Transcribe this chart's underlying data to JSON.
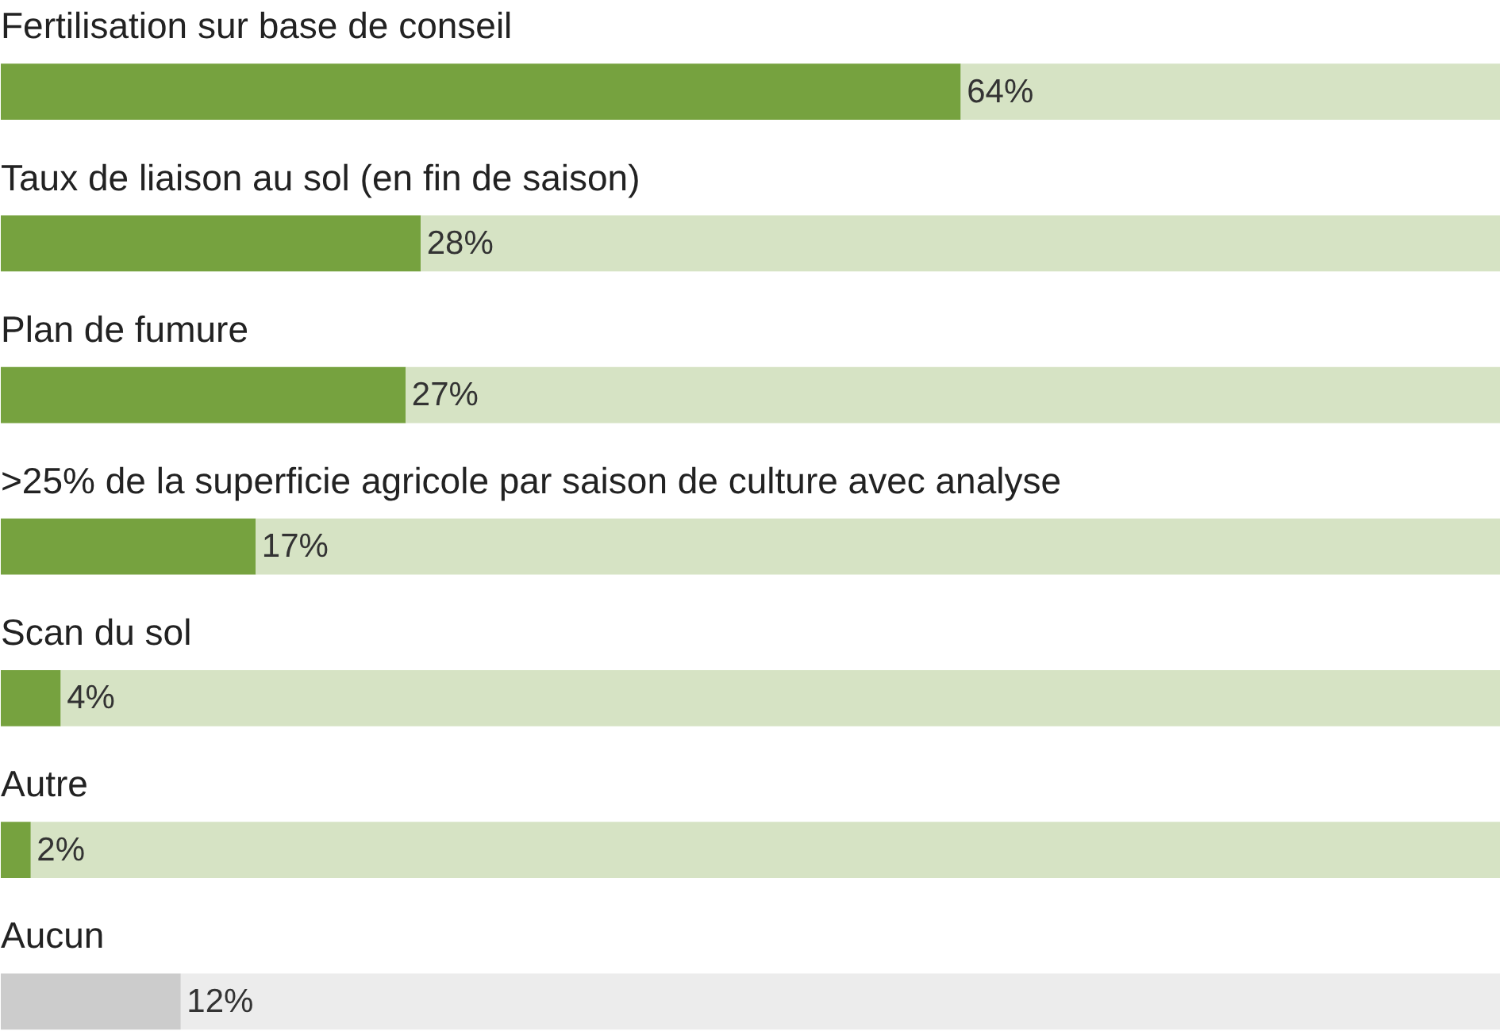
{
  "chart_data": {
    "type": "bar",
    "orientation": "horizontal",
    "stacked": true,
    "categories": [
      "Fertilisation sur base de conseil",
      "Taux de liaison au sol (en fin de saison)",
      "Plan de fumure",
      ">25% de la superficie agricole par saison de culture avec analyse",
      "Scan du sol",
      "Autre",
      "Aucun"
    ],
    "series": [
      {
        "colors": [
          "#76a23f",
          "#76a23f",
          "#76a23f",
          "#76a23f",
          "#76a23f",
          "#76a23f",
          "#cccccc"
        ],
        "values": [
          64,
          28,
          27,
          17,
          4,
          2,
          12
        ],
        "value_labels": [
          "64%",
          "28%",
          "27%",
          "17%",
          "4%",
          "2%",
          "12%"
        ]
      },
      {
        "colors": [
          "#d6e3c4",
          "#d6e3c4",
          "#d6e3c4",
          "#d6e3c4",
          "#d6e3c4",
          "#d6e3c4",
          "#ececec"
        ],
        "values": [
          36,
          72,
          73,
          83,
          96,
          98,
          88
        ]
      }
    ],
    "tick_labels": false,
    "grid": false
  }
}
